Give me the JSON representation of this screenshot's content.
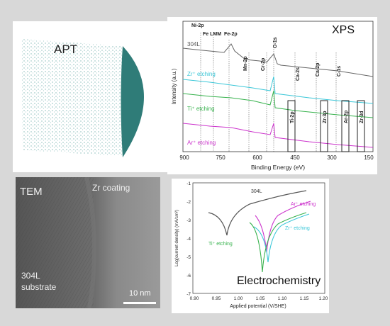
{
  "apt": {
    "label": "APT"
  },
  "xps": {
    "label": "XPS",
    "sample_label": "304L",
    "xlabel": "Binding Energy (eV)",
    "ylabel": "Intensity (a.u.)",
    "xticks": [
      "900",
      "750",
      "600",
      "450",
      "300",
      "150"
    ],
    "peaks_top": [
      "Ni-2p",
      "Fe LMM",
      "Fe-2p",
      "Mn-2p",
      "Cr-2p",
      "O-1s",
      "Ca-2s",
      "Ca-2p",
      "C-1s"
    ],
    "peaks_boxed": [
      "Ti-2p",
      "Zr-3p",
      "Ar-2p",
      "Zr-3d"
    ],
    "traces": [
      {
        "label": "Zr⁺ etching",
        "color": "#3cc7d8"
      },
      {
        "label": "Ti⁺ etching",
        "color": "#37b24d"
      },
      {
        "label": "Ar⁺ etching",
        "color": "#cc33cc"
      }
    ]
  },
  "tem": {
    "label": "TEM",
    "coating": "Zr coating",
    "substrate_1": "304L",
    "substrate_2": "substrate",
    "scalebar": "10 nm"
  },
  "ec": {
    "label": "Electrochemistry",
    "xlabel": "Applied potential (V/SHE)",
    "ylabel": "Log(current density) (mA/cm²)",
    "xticks": [
      "0.90",
      "0.95",
      "1.00",
      "1.05",
      "1.10",
      "1.15",
      "1.20"
    ],
    "yticks": [
      "-1",
      "-2",
      "-3",
      "-4",
      "-5",
      "-6",
      "-7"
    ],
    "curves": [
      {
        "label": "304L",
        "color": "#555555"
      },
      {
        "label": "Ar⁺ etching",
        "color": "#cc33cc"
      },
      {
        "label": "Zr⁺ etching",
        "color": "#3cc7d8"
      },
      {
        "label": "Ti⁺ etching",
        "color": "#37b24d"
      }
    ]
  }
}
